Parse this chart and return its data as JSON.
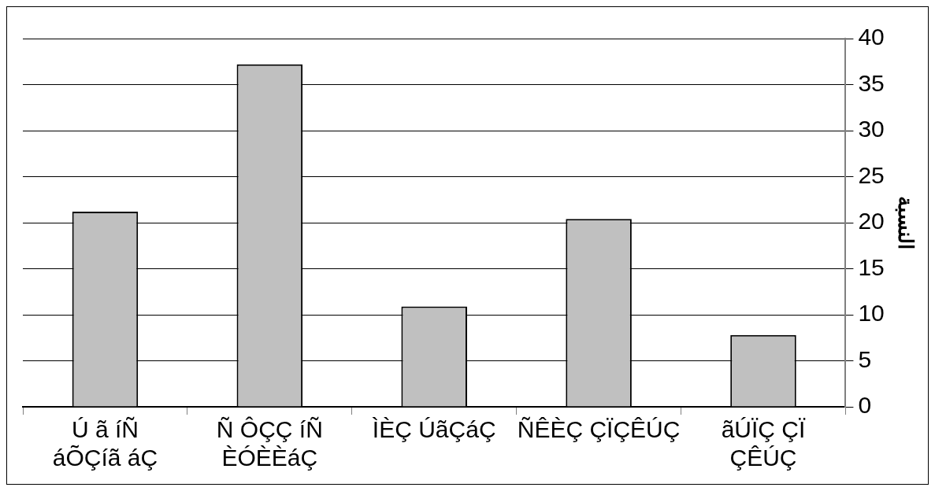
{
  "chart_data": {
    "type": "bar",
    "ylabel": "النسبة",
    "categories": [
      "Ú ã íÑ áÕÇíã áÇ",
      "Ñ ÔÇÇ íÑ ÈÓÈÈáÇ",
      "ÌÈÇ ÚãÇáÇ",
      "ÑÊÈÇ ÇÏÇÊÚÇ",
      "ãÚÏÇ ÇÏ ÇÊÚÇ"
    ],
    "values": [
      21.2,
      37.2,
      10.9,
      20.4,
      7.8
    ],
    "color": "#c0c0c0",
    "ylim": [
      0,
      40
    ],
    "yticks": [
      0,
      5,
      10,
      15,
      20,
      25,
      30,
      35,
      40
    ],
    "grid": "y",
    "legend": false
  }
}
